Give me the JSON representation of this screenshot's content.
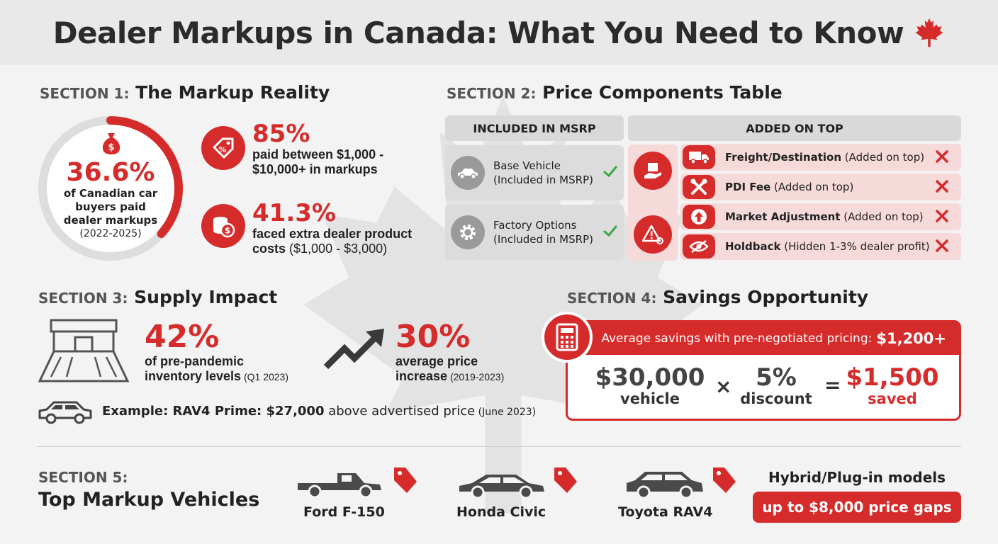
{
  "title": "Dealer Markups in Canada: What You Need to Know",
  "colors": {
    "accent": "#d62b2b",
    "text": "#222222",
    "background": "#f3f3f3",
    "grey": "#d9d9d9"
  },
  "section1": {
    "prefix": "SECTION 1:",
    "heading": "The Markup Reality",
    "donut": {
      "value": "36.6%",
      "fraction": 0.366,
      "line1": "of Canadian car",
      "line2": "buyers paid",
      "line3": "dealer markups",
      "years": "(2022-2025)",
      "icon": "money-bag-icon"
    },
    "stat_a": {
      "value": "85%",
      "line1": "paid between $1,000 -",
      "line2": "$10,000+ in markups",
      "icon": "price-tag-icon"
    },
    "stat_b": {
      "value": "41.3%",
      "line1": "faced extra dealer product",
      "line2_bold": "costs",
      "line2_rest": " ($1,000 - $3,000)",
      "icon": "coins-icon"
    }
  },
  "section2": {
    "prefix": "SECTION 2:",
    "heading": "Price Components Table",
    "included_header": "INCLUDED IN MSRP",
    "added_header": "ADDED ON TOP",
    "included": [
      {
        "name": "Base Vehicle",
        "note": "(Included in MSRP)",
        "icon": "car-icon"
      },
      {
        "name": "Factory Options",
        "note": "(Included in MSRP)",
        "icon": "gear-icon"
      }
    ],
    "added": [
      {
        "name": "Freight/Destination",
        "note": " (Added on top)",
        "icon": "truck-icon"
      },
      {
        "name": "PDI Fee",
        "note": " (Added on top)",
        "icon": "tools-icon"
      },
      {
        "name": "Market Adjustment",
        "note": " (Added on top)",
        "icon": "arrow-up-icon"
      },
      {
        "name": "Holdback",
        "note": " (Hidden 1-3% dealer profit)",
        "icon": "eye-off-icon"
      }
    ]
  },
  "section3": {
    "prefix": "SECTION 3:",
    "heading": "Supply Impact",
    "inventory": {
      "value": "42%",
      "line1": "of pre-pandemic",
      "line2": "inventory levels",
      "when": " (Q1 2023)",
      "icon": "dealership-icon"
    },
    "price": {
      "value": "30%",
      "line1": "average price",
      "line2": "increase",
      "when": " (2019-2023)",
      "icon": "trend-up-icon"
    },
    "example": {
      "bold": "Example: RAV4 Prime: $27,000",
      "rest": " above advertised price",
      "when": " (June 2023)",
      "icon": "suv-icon"
    }
  },
  "section4": {
    "prefix": "SECTION 4:",
    "heading": "Savings Opportunity",
    "banner_text": "Average savings with pre-negotiated pricing:",
    "banner_value": "$1,200+",
    "vehicle_value": "$30,000",
    "vehicle_label": "vehicle",
    "times": "×",
    "discount_value": "5%",
    "discount_label": "discount",
    "equals": "=",
    "saved_value": "$1,500",
    "saved_label": "saved",
    "icon": "calculator-icon"
  },
  "section5": {
    "prefix": "SECTION 5:",
    "heading": "Top Markup Vehicles",
    "vehicles": [
      {
        "name": "Ford F-150",
        "icon": "pickup-truck-icon"
      },
      {
        "name": "Honda Civic",
        "icon": "sedan-icon"
      },
      {
        "name": "Toyota RAV4",
        "icon": "suv-icon"
      }
    ],
    "hybrid_label": "Hybrid/Plug-in models",
    "hybrid_gap": "up to $8,000 price gaps"
  }
}
